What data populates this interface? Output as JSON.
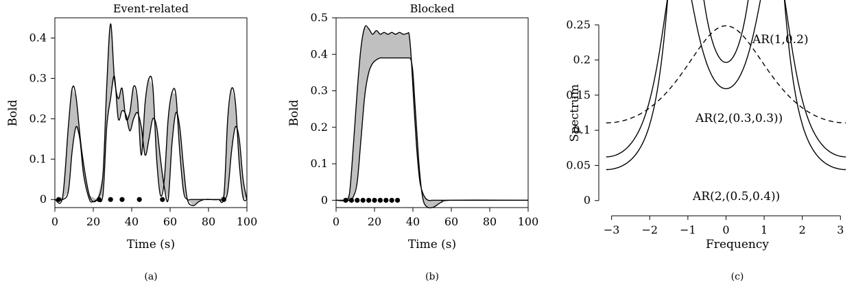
{
  "chart_data": [
    {
      "type": "line",
      "panel_label": "(a)",
      "title": "Event-related",
      "xlabel": "Time (s)",
      "ylabel": "Bold",
      "xlim": [
        0,
        100
      ],
      "ylim": [
        -0.02,
        0.45
      ],
      "x_ticks": [
        0,
        20,
        40,
        60,
        80,
        100
      ],
      "y_ticks": [
        0,
        0.1,
        0.2,
        0.3,
        0.4
      ],
      "x_tick_labels": [
        "0",
        "20",
        "40",
        "60",
        "80",
        "100"
      ],
      "y_tick_labels": [
        "0",
        "0.1",
        "0.2",
        "0.3",
        "0.4"
      ],
      "event_onsets": [
        2,
        23,
        29,
        35,
        44,
        56,
        88
      ],
      "curves": {
        "upper": {
          "x": [
            0,
            4,
            7,
            9,
            11,
            14,
            18,
            22,
            25,
            27,
            29,
            31,
            33,
            35,
            37,
            39,
            41,
            43,
            45,
            47,
            49,
            51,
            53,
            55,
            57,
            59,
            61,
            63,
            65,
            67,
            69,
            71,
            80,
            85,
            88,
            90,
            92,
            94,
            96,
            98,
            100
          ],
          "y": [
            0,
            0.005,
            0.18,
            0.275,
            0.255,
            0.12,
            0.01,
            0.0,
            0.06,
            0.28,
            0.435,
            0.3,
            0.25,
            0.275,
            0.2,
            0.215,
            0.28,
            0.25,
            0.11,
            0.24,
            0.3,
            0.28,
            0.1,
            0.01,
            0.05,
            0.2,
            0.265,
            0.26,
            0.12,
            0.02,
            0.0,
            0.0,
            0.0,
            0.0,
            0.01,
            0.2,
            0.275,
            0.24,
            0.09,
            0.005,
            0.0
          ]
        },
        "lower": {
          "x": [
            0,
            4,
            7,
            9,
            11,
            13,
            15,
            18,
            20,
            22,
            25,
            27,
            29,
            31,
            33,
            35,
            37,
            39,
            41,
            43,
            45,
            47,
            49,
            51,
            53,
            55,
            57,
            59,
            61,
            63,
            65,
            67,
            69,
            72,
            75,
            78,
            82,
            85,
            88,
            90,
            92,
            94,
            96,
            98,
            100
          ],
          "y": [
            0,
            0,
            0.02,
            0.12,
            0.18,
            0.15,
            0.06,
            0.0,
            -0.005,
            0.0,
            0.01,
            0.18,
            0.25,
            0.305,
            0.2,
            0.22,
            0.21,
            0.17,
            0.2,
            0.215,
            0.18,
            0.11,
            0.15,
            0.2,
            0.18,
            0.1,
            0.03,
            0.0,
            0.14,
            0.215,
            0.18,
            0.08,
            0.0,
            -0.015,
            -0.005,
            0.0,
            0.0,
            0.0,
            0.0,
            0.02,
            0.12,
            0.18,
            0.15,
            0.05,
            0.0
          ]
        }
      }
    },
    {
      "type": "line",
      "panel_label": "(b)",
      "title": "Blocked",
      "xlabel": "Time (s)",
      "ylabel": "Bold",
      "xlim": [
        0,
        100
      ],
      "ylim": [
        -0.02,
        0.5
      ],
      "x_ticks": [
        0,
        20,
        40,
        60,
        80,
        100
      ],
      "y_ticks": [
        0,
        0.1,
        0.2,
        0.3,
        0.4,
        0.5
      ],
      "x_tick_labels": [
        "0",
        "20",
        "40",
        "60",
        "80",
        "100"
      ],
      "y_tick_labels": [
        "0",
        "0.1",
        "0.2",
        "0.3",
        "0.4",
        "0.5"
      ],
      "event_onsets": [
        5,
        8,
        11,
        14,
        17,
        20,
        23,
        26,
        29,
        32
      ],
      "curves": {
        "upper": {
          "x": [
            0,
            5,
            7,
            9,
            11,
            13,
            15,
            17,
            19,
            21,
            23,
            25,
            27,
            29,
            31,
            33,
            35,
            37,
            38,
            39,
            40,
            41,
            42,
            43,
            44,
            46,
            48,
            50,
            55,
            60,
            100
          ],
          "y": [
            0,
            0,
            0.02,
            0.15,
            0.3,
            0.42,
            0.475,
            0.47,
            0.455,
            0.465,
            0.455,
            0.46,
            0.455,
            0.46,
            0.455,
            0.46,
            0.455,
            0.457,
            0.455,
            0.4,
            0.31,
            0.22,
            0.14,
            0.08,
            0.04,
            0.01,
            0.0,
            0.0,
            0.0,
            0.0,
            0.0
          ]
        },
        "lower": {
          "x": [
            0,
            5,
            7,
            9,
            11,
            13,
            15,
            17,
            19,
            21,
            23,
            25,
            30,
            35,
            37,
            38,
            39,
            40,
            41,
            42,
            43,
            44,
            45,
            46,
            48,
            50,
            52,
            55,
            60,
            100
          ],
          "y": [
            0,
            0,
            0.0,
            0.01,
            0.05,
            0.17,
            0.29,
            0.35,
            0.375,
            0.385,
            0.39,
            0.39,
            0.39,
            0.39,
            0.39,
            0.39,
            0.385,
            0.35,
            0.27,
            0.19,
            0.11,
            0.05,
            0.01,
            -0.01,
            -0.02,
            -0.02,
            -0.015,
            -0.005,
            0.0,
            0.0
          ]
        }
      }
    },
    {
      "type": "line",
      "panel_label": "(c)",
      "xlabel": "Frequency",
      "ylabel": "Spectrum",
      "xlim": [
        -3.3,
        3.3
      ],
      "ylim": [
        -0.01,
        0.26
      ],
      "x_ticks": [
        -3,
        -2,
        -1,
        0,
        1,
        2,
        3
      ],
      "y_ticks": [
        0,
        0.05,
        0.1,
        0.15,
        0.2,
        0.25
      ],
      "x_tick_labels": [
        "−3",
        "−2",
        "−1",
        "0",
        "1",
        "2",
        "3"
      ],
      "y_tick_labels": [
        "0",
        "0.05",
        "0.1",
        "0.15",
        "0.2",
        "0.25"
      ],
      "series": [
        {
          "name": "AR(1,0.2)",
          "style": "dashed",
          "ar": [
            0.2
          ]
        },
        {
          "name": "AR(2,(0.3,0.3))",
          "style": "solid",
          "ar": [
            0.3,
            -0.3
          ]
        },
        {
          "name": "AR(2,(0.5,0.4))",
          "style": "solid",
          "ar": [
            0.5,
            -0.4
          ]
        }
      ]
    }
  ]
}
